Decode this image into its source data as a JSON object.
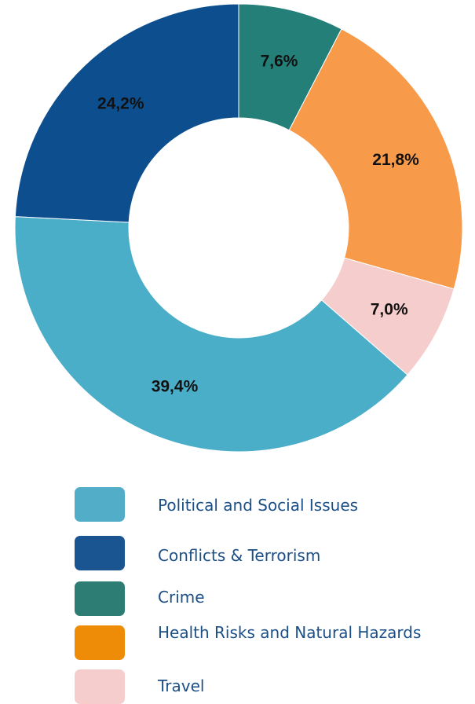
{
  "chart_data": {
    "type": "pie",
    "donut": true,
    "title": "",
    "slices": [
      {
        "label": "Crime",
        "value": 7.6,
        "display": "7,6%",
        "color": "#237f78"
      },
      {
        "label": "Health Risks and Natural Hazards",
        "value": 21.8,
        "display": "21,8%",
        "color": "#f79a4a"
      },
      {
        "label": "Travel",
        "value": 7.0,
        "display": "7,0%",
        "color": "#f5cdcd"
      },
      {
        "label": "Political and Social Issues",
        "value": 39.4,
        "display": "39,4%",
        "color": "#4aaec8"
      },
      {
        "label": "Conflicts & Terrorism",
        "value": 24.2,
        "display": "24,2%",
        "color": "#0d4f8e"
      }
    ],
    "start": "12 o'clock",
    "direction": "clockwise",
    "legend_position": "bottom"
  },
  "legend": {
    "items": [
      {
        "label": "Political and Social Issues",
        "color": "#52aec8"
      },
      {
        "label": "Conflicts & Terrorism",
        "color": "#1b5591"
      },
      {
        "label": "Crime",
        "color": "#2e7d74"
      },
      {
        "label": "Health Risks and Natural Hazards",
        "color": "#ef8c07"
      },
      {
        "label": "Travel",
        "color": "#f6cdcd"
      }
    ]
  }
}
